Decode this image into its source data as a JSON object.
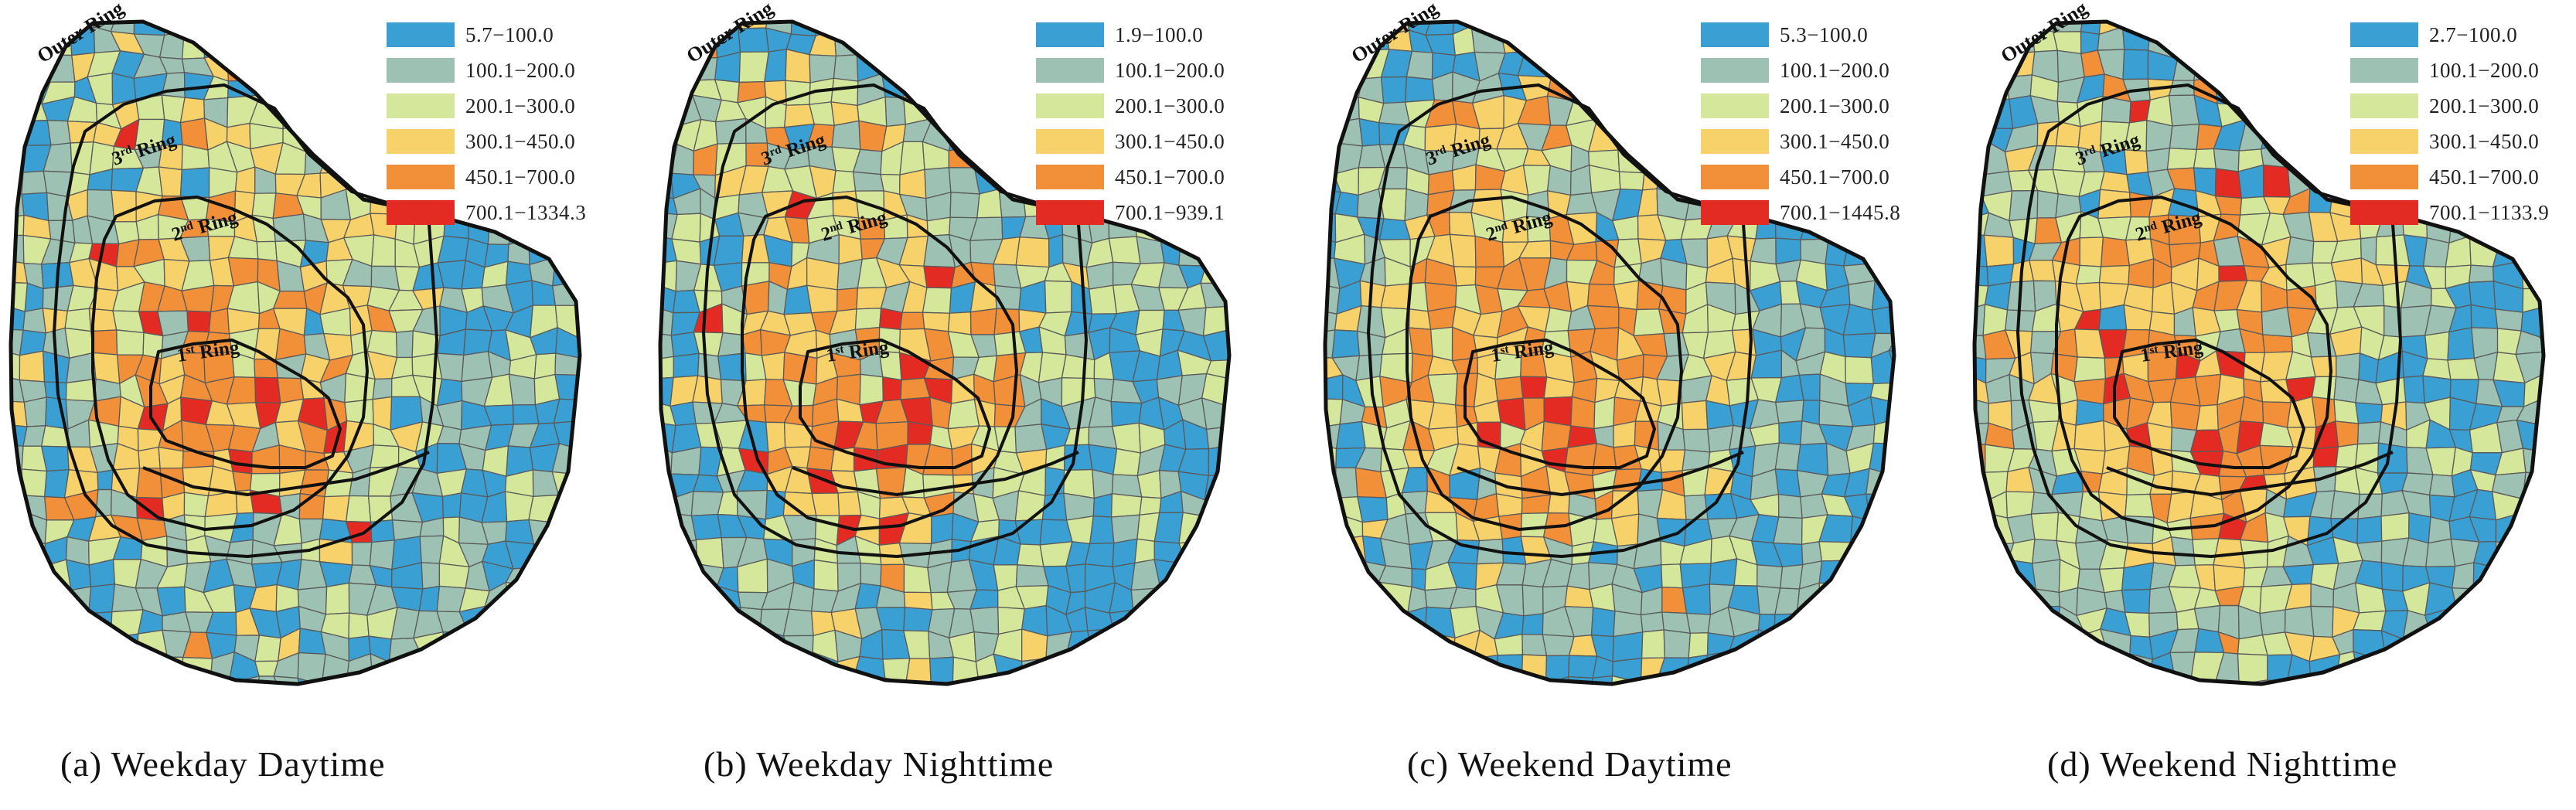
{
  "ring_labels": {
    "outer": "Outer Ring",
    "third_num": "3",
    "third_sup": "rd",
    "third_word": "Ring",
    "second_num": "2",
    "second_sup": "nd",
    "second_word": "Ring",
    "first_num": "1",
    "first_sup": "st",
    "first_word": "Ring"
  },
  "colors": {
    "class1": "#3a9fd3",
    "class2": "#9dc2b3",
    "class3": "#d4e79a",
    "class4": "#f7d26a",
    "class5": "#f2903a",
    "class6": "#e32b24"
  },
  "panels": [
    {
      "caption": "(a) Weekday Daytime",
      "legend": [
        {
          "label": "5.7−100.0",
          "color": "#3a9fd3"
        },
        {
          "label": "100.1−200.0",
          "color": "#9dc2b3"
        },
        {
          "label": "200.1−300.0",
          "color": "#d4e79a"
        },
        {
          "label": "300.1−450.0",
          "color": "#f7d26a"
        },
        {
          "label": "450.1−700.0",
          "color": "#f2903a"
        },
        {
          "label": "700.1−1334.3",
          "color": "#e32b24"
        }
      ]
    },
    {
      "caption": "(b) Weekday Nighttime",
      "legend": [
        {
          "label": "1.9−100.0",
          "color": "#3a9fd3"
        },
        {
          "label": "100.1−200.0",
          "color": "#9dc2b3"
        },
        {
          "label": "200.1−300.0",
          "color": "#d4e79a"
        },
        {
          "label": "300.1−450.0",
          "color": "#f7d26a"
        },
        {
          "label": "450.1−700.0",
          "color": "#f2903a"
        },
        {
          "label": "700.1−939.1",
          "color": "#e32b24"
        }
      ]
    },
    {
      "caption": "(c) Weekend Daytime",
      "legend": [
        {
          "label": "5.3−100.0",
          "color": "#3a9fd3"
        },
        {
          "label": "100.1−200.0",
          "color": "#9dc2b3"
        },
        {
          "label": "200.1−300.0",
          "color": "#d4e79a"
        },
        {
          "label": "300.1−450.0",
          "color": "#f7d26a"
        },
        {
          "label": "450.1−700.0",
          "color": "#f2903a"
        },
        {
          "label": "700.1−1445.8",
          "color": "#e32b24"
        }
      ]
    },
    {
      "caption": "(d) Weekend Nighttime",
      "legend": [
        {
          "label": "2.7−100.0",
          "color": "#3a9fd3"
        },
        {
          "label": "100.1−200.0",
          "color": "#9dc2b3"
        },
        {
          "label": "200.1−300.0",
          "color": "#d4e79a"
        },
        {
          "label": "300.1−450.0",
          "color": "#f7d26a"
        },
        {
          "label": "450.1−700.0",
          "color": "#f2903a"
        },
        {
          "label": "700.1−1133.9",
          "color": "#e32b24"
        }
      ]
    }
  ]
}
